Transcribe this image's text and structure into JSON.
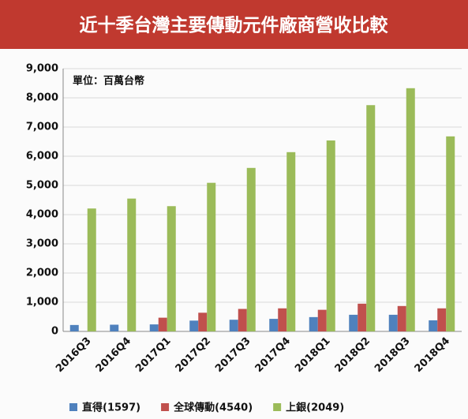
{
  "chart_data": {
    "type": "bar",
    "title": "近十季台灣主要傳動元件廠商營收比較",
    "annotation": "單位：百萬台幣",
    "categories": [
      "2016Q3",
      "2016Q4",
      "2017Q1",
      "2017Q2",
      "2017Q3",
      "2017Q4",
      "2018Q1",
      "2018Q2",
      "2018Q3",
      "2018Q4"
    ],
    "series": [
      {
        "name": "直得(1597)",
        "color": "#4f81bd",
        "values": [
          220,
          230,
          240,
          370,
          400,
          430,
          490,
          570,
          570,
          380
        ]
      },
      {
        "name": "全球傳動(4540)",
        "color": "#c0504d",
        "values": [
          null,
          null,
          470,
          640,
          770,
          790,
          740,
          950,
          870,
          790
        ]
      },
      {
        "name": "上銀(2049)",
        "color": "#9bbb59",
        "values": [
          4210,
          4550,
          4290,
          5090,
          5600,
          6140,
          6540,
          7750,
          8330,
          6680
        ]
      }
    ],
    "ylim": [
      0,
      9000
    ],
    "yticks": [
      0,
      {
        "value": 1000,
        "label": "1,000"
      },
      {
        "value": 2000,
        "label": "2,000"
      },
      {
        "value": 3000,
        "label": "3,000"
      },
      {
        "value": 4000,
        "label": "4,000"
      },
      {
        "value": 5000,
        "label": "5,000"
      },
      {
        "value": 6000,
        "label": "6,000"
      },
      {
        "value": 7000,
        "label": "7,000"
      },
      {
        "value": 8000,
        "label": "8,000"
      },
      {
        "value": 9000,
        "label": "9,000"
      }
    ],
    "grid": true
  }
}
